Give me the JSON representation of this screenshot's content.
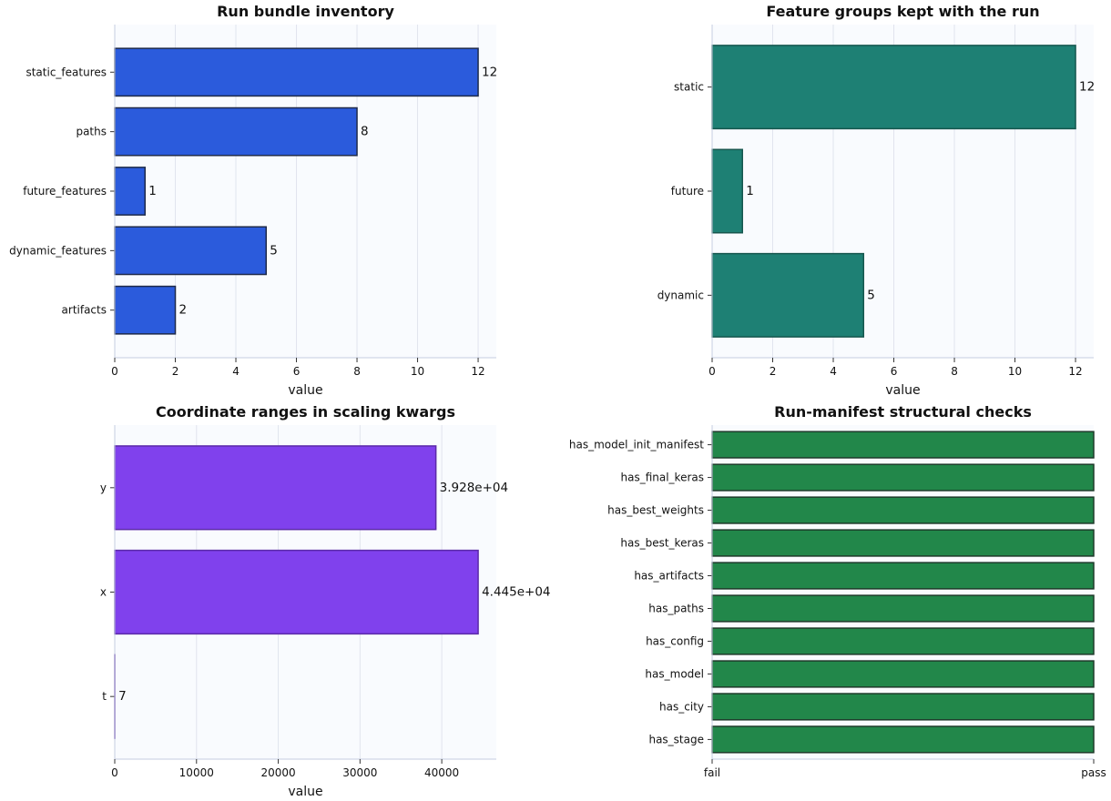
{
  "chart_data": [
    {
      "type": "bar",
      "orientation": "horizontal",
      "title": "Run bundle inventory",
      "xlabel": "value",
      "ylabel": "",
      "categories": [
        "static_features",
        "paths",
        "future_features",
        "dynamic_features",
        "artifacts"
      ],
      "values": [
        12,
        8,
        1,
        5,
        2
      ],
      "data_labels": [
        "12",
        "8",
        "1",
        "5",
        "2"
      ],
      "xlim": [
        0,
        12.6
      ],
      "xticks": [
        0,
        2,
        4,
        6,
        8,
        10,
        12
      ],
      "xtick_labels": [
        "0",
        "2",
        "4",
        "6",
        "8",
        "10",
        "12"
      ],
      "grid": true,
      "bar_color": "#2b5bdc",
      "edge_color": "#1e2a4a"
    },
    {
      "type": "bar",
      "orientation": "horizontal",
      "title": "Feature groups kept with the run",
      "xlabel": "value",
      "ylabel": "",
      "categories": [
        "static",
        "future",
        "dynamic"
      ],
      "values": [
        12,
        1,
        5
      ],
      "data_labels": [
        "12",
        "1",
        "5"
      ],
      "xlim": [
        0,
        12.6
      ],
      "xticks": [
        0,
        2,
        4,
        6,
        8,
        10,
        12
      ],
      "xtick_labels": [
        "0",
        "2",
        "4",
        "6",
        "8",
        "10",
        "12"
      ],
      "grid": true,
      "bar_color": "#1e8074",
      "edge_color": "#17574f"
    },
    {
      "type": "bar",
      "orientation": "horizontal",
      "title": "Coordinate ranges in scaling kwargs",
      "xlabel": "value",
      "ylabel": "",
      "categories": [
        "y",
        "x",
        "t"
      ],
      "values": [
        39280,
        44450,
        7
      ],
      "data_labels": [
        "3.928e+04",
        "4.445e+04",
        "7"
      ],
      "xlim": [
        0,
        46670
      ],
      "xticks": [
        0,
        10000,
        20000,
        30000,
        40000
      ],
      "xtick_labels": [
        "0",
        "10000",
        "20000",
        "30000",
        "40000"
      ],
      "grid": true,
      "bar_color": "#8041ed",
      "edge_color": "#5b2aa8"
    },
    {
      "type": "bar",
      "orientation": "horizontal",
      "title": "Run-manifest structural checks",
      "xlabel": "",
      "ylabel": "",
      "categories": [
        "has_model_init_manifest",
        "has_final_keras",
        "has_best_weights",
        "has_best_keras",
        "has_artifacts",
        "has_paths",
        "has_config",
        "has_model",
        "has_city",
        "has_stage"
      ],
      "values": [
        1,
        1,
        1,
        1,
        1,
        1,
        1,
        1,
        1,
        1
      ],
      "data_labels": [
        "",
        "",
        "",
        "",
        "",
        "",
        "",
        "",
        "",
        ""
      ],
      "xlim": [
        0,
        1
      ],
      "xticks": [
        0,
        1
      ],
      "xtick_labels": [
        "fail",
        "pass"
      ],
      "grid": false,
      "bar_color": "#22874a",
      "edge_color": "#1e3a2a"
    }
  ]
}
